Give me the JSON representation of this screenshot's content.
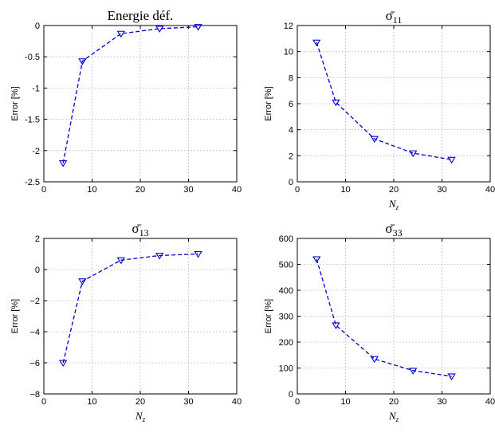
{
  "chart_data": [
    {
      "type": "line",
      "title": "Energie déf.",
      "xlabel": "",
      "ylabel": "Error [%]",
      "xlim": [
        0,
        40
      ],
      "ylim": [
        -2.5,
        0
      ],
      "xticks": [
        0,
        10,
        20,
        30,
        40
      ],
      "yticks": [
        -2.5,
        -2,
        -1.5,
        -1,
        -0.5,
        0
      ],
      "xticklabels": [
        "0",
        "10",
        "20",
        "30",
        "40"
      ],
      "yticklabels": [
        "-2.5",
        "-2",
        "-1.5",
        "-1",
        "-0.5",
        "0"
      ],
      "grid": true,
      "x": [
        4,
        8,
        16,
        24,
        32
      ],
      "series": [
        {
          "values": [
            -2.2,
            -0.57,
            -0.13,
            -0.05,
            -0.02
          ]
        }
      ]
    },
    {
      "type": "line",
      "title": "σ̄11",
      "title_main": "σ̄",
      "title_sub": "11",
      "xlabel": "Nz",
      "xlabel_main": "N",
      "xlabel_sub": "z",
      "ylabel": "Error [%]",
      "xlim": [
        0,
        40
      ],
      "ylim": [
        0,
        12
      ],
      "xticks": [
        0,
        10,
        20,
        30,
        40
      ],
      "yticks": [
        0,
        2,
        4,
        6,
        8,
        10,
        12
      ],
      "xticklabels": [
        "0",
        "10",
        "20",
        "30",
        "40"
      ],
      "yticklabels": [
        "0",
        "2",
        "4",
        "6",
        "8",
        "10",
        "12"
      ],
      "grid": true,
      "x": [
        4,
        8,
        16,
        24,
        32
      ],
      "series": [
        {
          "values": [
            10.7,
            6.1,
            3.3,
            2.2,
            1.7
          ]
        }
      ]
    },
    {
      "type": "line",
      "title": "σ̄13",
      "title_main": "σ̄",
      "title_sub": "13",
      "xlabel": "Nz",
      "xlabel_main": "N",
      "xlabel_sub": "z",
      "ylabel": "Error [%]",
      "xlim": [
        0,
        40
      ],
      "ylim": [
        -8,
        2
      ],
      "xticks": [
        0,
        10,
        20,
        30,
        40
      ],
      "yticks": [
        -8,
        -6,
        -4,
        -2,
        0,
        2
      ],
      "xticklabels": [
        "0",
        "10",
        "20",
        "30",
        "40"
      ],
      "yticklabels": [
        "−8",
        "−6",
        "−4",
        "−2",
        "0",
        "2"
      ],
      "grid": true,
      "x": [
        4,
        8,
        16,
        24,
        32
      ],
      "series": [
        {
          "values": [
            -6.0,
            -0.75,
            0.6,
            0.9,
            1.0
          ]
        }
      ]
    },
    {
      "type": "line",
      "title": "σ̄33",
      "title_main": "σ̄",
      "title_sub": "33",
      "xlabel": "Nz",
      "xlabel_main": "N",
      "xlabel_sub": "z",
      "ylabel": "Error [%]",
      "xlim": [
        0,
        40
      ],
      "ylim": [
        0,
        600
      ],
      "xticks": [
        0,
        10,
        20,
        30,
        40
      ],
      "yticks": [
        0,
        100,
        200,
        300,
        400,
        500,
        600
      ],
      "xticklabels": [
        "0",
        "10",
        "20",
        "30",
        "40"
      ],
      "yticklabels": [
        "0",
        "100",
        "200",
        "300",
        "400",
        "500",
        "600"
      ],
      "grid": true,
      "x": [
        4,
        8,
        16,
        24,
        32
      ],
      "series": [
        {
          "values": [
            520,
            265,
            135,
            90,
            68
          ]
        }
      ]
    }
  ]
}
